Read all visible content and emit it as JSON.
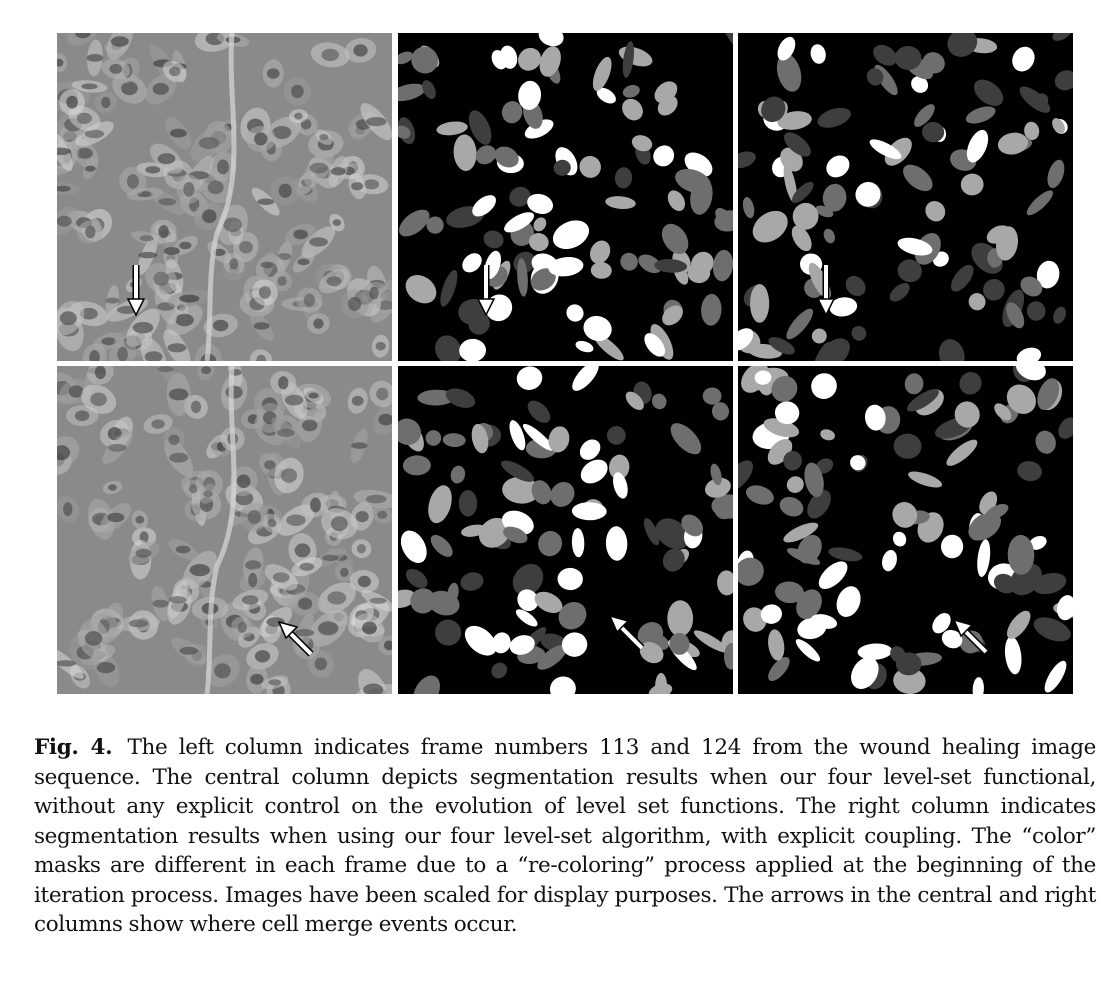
{
  "figure": {
    "caption_label": "Fig. 4.",
    "caption_text": "The left column indicates frame numbers 113 and 124 from the wound healing image sequence. The central column depicts segmentation results when our four level-set functional, without any explicit control on the evolution of level set functions. The right column indicates segmentation results when using our four level-set algorithm, with explicit coupling. The “color” masks are different in each frame due to a “re-coloring” process applied at the beginning of the iteration process. Images have been scaled for display purposes. The arrows in the central and right columns show where cell merge events occur.",
    "panels": [
      {
        "name": "frame-113-microscopy",
        "kind": "micro",
        "arrow": "down",
        "seed": 11
      },
      {
        "name": "frame-113-segmentation-uncoupled",
        "kind": "seg",
        "arrow": "down",
        "seed": 23
      },
      {
        "name": "frame-113-segmentation-coupled",
        "kind": "seg",
        "arrow": "down",
        "seed": 37
      },
      {
        "name": "frame-124-microscopy",
        "kind": "micro",
        "arrow": "up-left",
        "seed": 41
      },
      {
        "name": "frame-124-segmentation-uncoupled",
        "kind": "seg",
        "arrow": "up-left",
        "seed": 53
      },
      {
        "name": "frame-124-segmentation-coupled",
        "kind": "seg",
        "arrow": "up-left",
        "seed": 67
      }
    ],
    "colors": {
      "seg_background": "#000000",
      "seg_levels": [
        "#ffffff",
        "#a8a8a8",
        "#6e6e6e",
        "#3e3e3e"
      ],
      "micro_background": "#8a8a8a",
      "arrow": "#ffffff"
    }
  }
}
